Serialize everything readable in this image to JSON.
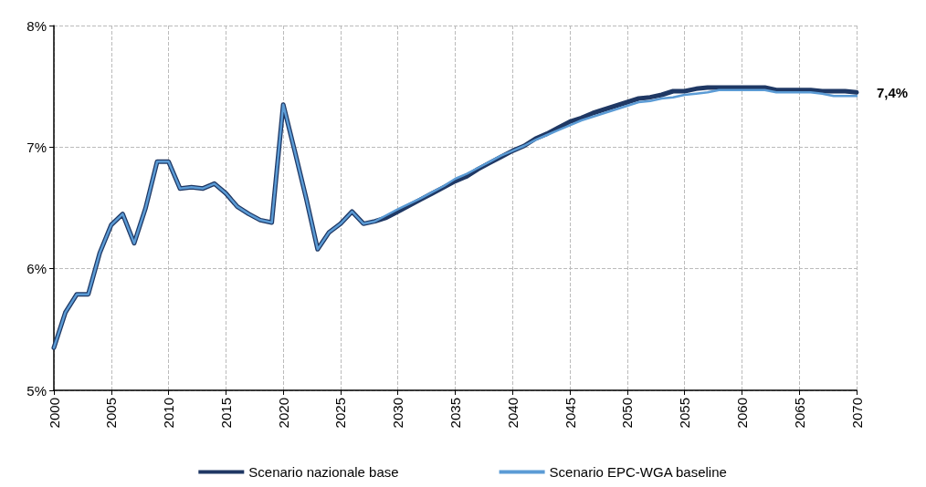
{
  "chart_data": {
    "type": "line",
    "xlim": [
      2000,
      2070
    ],
    "xticks": [
      2000,
      2005,
      2010,
      2015,
      2020,
      2025,
      2030,
      2035,
      2040,
      2045,
      2050,
      2055,
      2060,
      2065,
      2070
    ],
    "ylim": [
      5,
      8
    ],
    "yticks": [
      {
        "value": 5,
        "label": "5%"
      },
      {
        "value": 6,
        "label": "6%"
      },
      {
        "value": 7,
        "label": "7%"
      },
      {
        "value": 8,
        "label": "8%"
      }
    ],
    "grid": true,
    "legend": "bottom",
    "marker": "none",
    "line_style": "solid",
    "annotations": [
      {
        "text": "7,4%",
        "x": 2070,
        "y": 7.45
      }
    ],
    "series": [
      {
        "name": "Scenario nazionale base",
        "color": "#1f3864",
        "x": [
          2000,
          2001,
          2002,
          2003,
          2004,
          2005,
          2006,
          2007,
          2008,
          2009,
          2010,
          2011,
          2012,
          2013,
          2014,
          2015,
          2016,
          2017,
          2018,
          2019,
          2020,
          2021,
          2022,
          2023,
          2024,
          2025,
          2026,
          2027,
          2028,
          2029,
          2030,
          2032,
          2033,
          2034,
          2035,
          2036,
          2037,
          2038,
          2039,
          2040,
          2041,
          2042,
          2043,
          2044,
          2045,
          2046,
          2047,
          2048,
          2049,
          2050,
          2051,
          2052,
          2053,
          2054,
          2055,
          2056,
          2057,
          2062,
          2063,
          2066,
          2067,
          2069,
          2070
        ],
        "values": [
          5.35,
          5.64,
          5.79,
          5.79,
          6.13,
          6.36,
          6.45,
          6.21,
          6.5,
          6.88,
          6.88,
          6.66,
          6.67,
          6.66,
          6.7,
          6.62,
          6.51,
          6.45,
          6.4,
          6.38,
          7.35,
          6.97,
          6.58,
          6.16,
          6.3,
          6.37,
          6.47,
          6.37,
          6.39,
          6.42,
          6.47,
          6.57,
          6.62,
          6.67,
          6.72,
          6.76,
          6.82,
          6.87,
          6.92,
          6.97,
          7.01,
          7.07,
          7.11,
          7.16,
          7.21,
          7.24,
          7.28,
          7.31,
          7.34,
          7.37,
          7.4,
          7.41,
          7.43,
          7.46,
          7.46,
          7.48,
          7.49,
          7.49,
          7.47,
          7.47,
          7.46,
          7.46,
          7.45
        ]
      },
      {
        "name": "Scenario EPC-WGA baseline",
        "color": "#5b9bd5",
        "x": [
          2000,
          2001,
          2002,
          2003,
          2004,
          2005,
          2006,
          2007,
          2008,
          2009,
          2010,
          2011,
          2012,
          2013,
          2014,
          2015,
          2016,
          2017,
          2018,
          2019,
          2020,
          2021,
          2022,
          2023,
          2024,
          2025,
          2026,
          2027,
          2028,
          2029,
          2030,
          2032,
          2033,
          2034,
          2035,
          2036,
          2037,
          2038,
          2039,
          2040,
          2041,
          2042,
          2043,
          2044,
          2045,
          2046,
          2047,
          2048,
          2049,
          2050,
          2051,
          2052,
          2053,
          2054,
          2055,
          2056,
          2057,
          2058,
          2062,
          2063,
          2066,
          2067,
          2068,
          2070
        ],
        "values": [
          5.35,
          5.64,
          5.79,
          5.79,
          6.13,
          6.36,
          6.45,
          6.21,
          6.5,
          6.88,
          6.88,
          6.66,
          6.67,
          6.66,
          6.7,
          6.62,
          6.51,
          6.45,
          6.4,
          6.38,
          7.35,
          6.97,
          6.58,
          6.16,
          6.3,
          6.37,
          6.47,
          6.37,
          6.39,
          6.44,
          6.49,
          6.58,
          6.63,
          6.68,
          6.74,
          6.78,
          6.83,
          6.88,
          6.93,
          6.97,
          7.01,
          7.06,
          7.1,
          7.14,
          7.18,
          7.22,
          7.25,
          7.28,
          7.31,
          7.34,
          7.37,
          7.38,
          7.4,
          7.41,
          7.43,
          7.44,
          7.45,
          7.47,
          7.47,
          7.45,
          7.45,
          7.44,
          7.42,
          7.42
        ]
      }
    ]
  }
}
